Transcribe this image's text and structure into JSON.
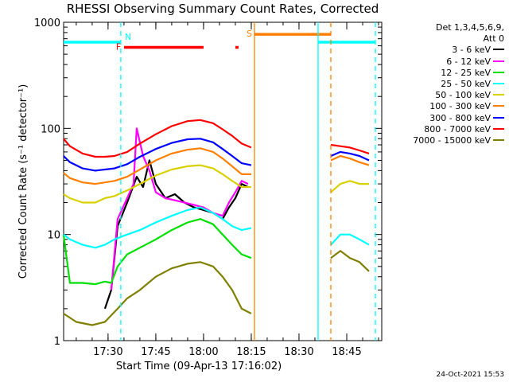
{
  "chart_data": {
    "type": "line",
    "title": "RHESSI Observing Summary Count Rates, Corrected",
    "xlabel": "Start Time (09-Apr-13 17:16:02)",
    "ylabel": "Corrected Count Rate (s⁻¹ detector⁻¹)",
    "yscale": "log",
    "ylim": [
      1,
      1000
    ],
    "xlim": [
      "17:16:02",
      "18:56:00"
    ],
    "x_ticks": [
      "17:30",
      "17:45",
      "18:00",
      "18:15",
      "18:30",
      "18:45"
    ],
    "y_ticks": [
      "1",
      "10",
      "100",
      "1000"
    ],
    "legend": {
      "header_line1": "Det 1,3,4,5,6,9,",
      "header_line2": "Att 0",
      "position": "right"
    },
    "series": [
      {
        "name": "3 - 6 keV",
        "color": "#000000",
        "points": [
          [
            "17:29",
            2
          ],
          [
            "17:31",
            3
          ],
          [
            "17:33",
            12
          ],
          [
            "17:36",
            20
          ],
          [
            "17:39",
            35
          ],
          [
            "17:41",
            28
          ],
          [
            "17:43",
            50
          ],
          [
            "17:45",
            30
          ],
          [
            "17:48",
            22
          ],
          [
            "17:51",
            24
          ],
          [
            "17:54",
            20
          ],
          [
            "17:57",
            18
          ],
          [
            "18:00",
            17
          ],
          [
            "18:03",
            16
          ],
          [
            "18:06",
            14
          ],
          [
            "18:08",
            18
          ],
          [
            "18:10",
            22
          ],
          [
            "18:12",
            30
          ],
          [
            "18:14",
            28
          ]
        ]
      },
      {
        "name": "6 - 12 keV",
        "color": "#ff00ff",
        "points": [
          [
            "17:31",
            3
          ],
          [
            "17:33",
            14
          ],
          [
            "17:36",
            22
          ],
          [
            "17:38",
            30
          ],
          [
            "17:39",
            100
          ],
          [
            "17:41",
            55
          ],
          [
            "17:43",
            40
          ],
          [
            "17:45",
            25
          ],
          [
            "17:48",
            22
          ],
          [
            "17:51",
            21
          ],
          [
            "17:54",
            20
          ],
          [
            "17:57",
            19
          ],
          [
            "18:00",
            18
          ],
          [
            "18:03",
            16
          ],
          [
            "18:06",
            15
          ],
          [
            "18:08",
            20
          ],
          [
            "18:10",
            25
          ],
          [
            "18:12",
            32
          ],
          [
            "18:14",
            30
          ]
        ]
      },
      {
        "name": "12 - 25 keV",
        "color": "#00e000",
        "points": [
          [
            "17:16",
            10
          ],
          [
            "17:18",
            3.5
          ],
          [
            "17:22",
            3.5
          ],
          [
            "17:26",
            3.4
          ],
          [
            "17:29",
            3.6
          ],
          [
            "17:31",
            3.5
          ],
          [
            "17:33",
            5
          ],
          [
            "17:36",
            6.5
          ],
          [
            "17:40",
            7.5
          ],
          [
            "17:45",
            9
          ],
          [
            "17:50",
            11
          ],
          [
            "17:55",
            13
          ],
          [
            "17:59",
            14
          ],
          [
            "18:03",
            12.5
          ],
          [
            "18:06",
            10
          ],
          [
            "18:09",
            8
          ],
          [
            "18:12",
            6.5
          ],
          [
            "18:15",
            6
          ]
        ]
      },
      {
        "name": "25 - 50 keV",
        "color": "#00ffff",
        "points": [
          [
            "17:16",
            10
          ],
          [
            "17:18",
            9
          ],
          [
            "17:22",
            8
          ],
          [
            "17:26",
            7.5
          ],
          [
            "17:29",
            8
          ],
          [
            "17:32",
            9
          ],
          [
            "17:36",
            10
          ],
          [
            "17:40",
            11
          ],
          [
            "17:45",
            13
          ],
          [
            "17:50",
            15
          ],
          [
            "17:55",
            17
          ],
          [
            "17:59",
            18
          ],
          [
            "18:03",
            16
          ],
          [
            "18:06",
            14
          ],
          [
            "18:09",
            12
          ],
          [
            "18:12",
            11
          ],
          [
            "18:15",
            11.5
          ],
          [
            "18:40",
            8
          ],
          [
            "18:43",
            10
          ],
          [
            "18:46",
            10
          ],
          [
            "18:49",
            9
          ],
          [
            "18:52",
            8
          ]
        ]
      },
      {
        "name": "50 - 100 keV",
        "color": "#d8d000",
        "points": [
          [
            "17:16",
            24
          ],
          [
            "17:18",
            22
          ],
          [
            "17:22",
            20
          ],
          [
            "17:26",
            20
          ],
          [
            "17:29",
            22
          ],
          [
            "17:32",
            23
          ],
          [
            "17:36",
            26
          ],
          [
            "17:40",
            30
          ],
          [
            "17:45",
            36
          ],
          [
            "17:50",
            41
          ],
          [
            "17:55",
            44
          ],
          [
            "17:59",
            45
          ],
          [
            "18:03",
            42
          ],
          [
            "18:06",
            37
          ],
          [
            "18:09",
            32
          ],
          [
            "18:12",
            28
          ],
          [
            "18:15",
            28
          ],
          [
            "18:40",
            25
          ],
          [
            "18:43",
            30
          ],
          [
            "18:46",
            32
          ],
          [
            "18:49",
            30
          ],
          [
            "18:52",
            30
          ]
        ]
      },
      {
        "name": "100 - 300 keV",
        "color": "#ff8000",
        "points": [
          [
            "17:16",
            38
          ],
          [
            "17:18",
            34
          ],
          [
            "17:22",
            31
          ],
          [
            "17:26",
            30
          ],
          [
            "17:29",
            31
          ],
          [
            "17:32",
            32
          ],
          [
            "17:36",
            35
          ],
          [
            "17:40",
            41
          ],
          [
            "17:45",
            50
          ],
          [
            "17:50",
            58
          ],
          [
            "17:55",
            63
          ],
          [
            "17:59",
            65
          ],
          [
            "18:03",
            60
          ],
          [
            "18:06",
            52
          ],
          [
            "18:09",
            44
          ],
          [
            "18:12",
            37
          ],
          [
            "18:15",
            37
          ],
          [
            "18:40",
            50
          ],
          [
            "18:43",
            55
          ],
          [
            "18:46",
            52
          ],
          [
            "18:49",
            48
          ],
          [
            "18:52",
            45
          ]
        ]
      },
      {
        "name": "300 - 800 keV",
        "color": "#0000ff",
        "points": [
          [
            "17:16",
            55
          ],
          [
            "17:18",
            48
          ],
          [
            "17:22",
            42
          ],
          [
            "17:26",
            40
          ],
          [
            "17:29",
            41
          ],
          [
            "17:32",
            42
          ],
          [
            "17:36",
            46
          ],
          [
            "17:40",
            54
          ],
          [
            "17:45",
            64
          ],
          [
            "17:50",
            73
          ],
          [
            "17:55",
            79
          ],
          [
            "17:59",
            80
          ],
          [
            "18:03",
            74
          ],
          [
            "18:06",
            64
          ],
          [
            "18:09",
            55
          ],
          [
            "18:12",
            47
          ],
          [
            "18:15",
            45
          ],
          [
            "18:40",
            55
          ],
          [
            "18:43",
            60
          ],
          [
            "18:46",
            58
          ],
          [
            "18:49",
            55
          ],
          [
            "18:52",
            50
          ]
        ]
      },
      {
        "name": "800 - 7000 keV",
        "color": "#ff0000",
        "points": [
          [
            "17:16",
            80
          ],
          [
            "17:18",
            68
          ],
          [
            "17:22",
            58
          ],
          [
            "17:26",
            54
          ],
          [
            "17:29",
            54
          ],
          [
            "17:32",
            55
          ],
          [
            "17:36",
            60
          ],
          [
            "17:40",
            72
          ],
          [
            "17:45",
            88
          ],
          [
            "17:50",
            105
          ],
          [
            "17:55",
            117
          ],
          [
            "17:59",
            120
          ],
          [
            "18:03",
            112
          ],
          [
            "18:06",
            98
          ],
          [
            "18:09",
            85
          ],
          [
            "18:12",
            72
          ],
          [
            "18:15",
            66
          ],
          [
            "18:40",
            70
          ],
          [
            "18:43",
            68
          ],
          [
            "18:46",
            66
          ],
          [
            "18:49",
            62
          ],
          [
            "18:52",
            58
          ]
        ]
      },
      {
        "name": "7000 - 15000 keV",
        "color": "#808000",
        "points": [
          [
            "17:16",
            1.8
          ],
          [
            "17:20",
            1.5
          ],
          [
            "17:25",
            1.4
          ],
          [
            "17:29",
            1.5
          ],
          [
            "17:33",
            2
          ],
          [
            "17:36",
            2.5
          ],
          [
            "17:40",
            3
          ],
          [
            "17:45",
            4
          ],
          [
            "17:50",
            4.8
          ],
          [
            "17:55",
            5.3
          ],
          [
            "17:59",
            5.5
          ],
          [
            "18:03",
            5
          ],
          [
            "18:06",
            4
          ],
          [
            "18:09",
            3
          ],
          [
            "18:12",
            2
          ],
          [
            "18:15",
            1.8
          ],
          [
            "18:40",
            6
          ],
          [
            "18:43",
            7
          ],
          [
            "18:46",
            6
          ],
          [
            "18:49",
            5.5
          ],
          [
            "18:52",
            4.5
          ]
        ]
      }
    ],
    "annotations": [
      {
        "type": "attenuator_bar",
        "color": "#00ffff",
        "y": 650,
        "from": "17:16:02",
        "to": "17:34"
      },
      {
        "type": "attenuator_bar",
        "color": "#00ffff",
        "y": 650,
        "from": "18:36",
        "to": "18:54"
      },
      {
        "type": "flag_bar",
        "label": "F",
        "color": "#ff0000",
        "y": 580,
        "from": "17:35",
        "to": "18:00"
      },
      {
        "type": "flag_bar",
        "label": "",
        "color": "#ff0000",
        "y": 580,
        "from": "18:10",
        "to": "18:11"
      },
      {
        "type": "flag_bar",
        "label": "S",
        "color": "#ff8000",
        "y": 770,
        "from": "18:16",
        "to": "18:40"
      },
      {
        "type": "vline",
        "label": "N",
        "color": "#00ffff",
        "x": "17:34",
        "style": "dashed"
      },
      {
        "type": "vline",
        "color": "#ff8000",
        "x": "18:16",
        "style": "solid"
      },
      {
        "type": "vline",
        "color": "#00ffff",
        "x": "18:36",
        "style": "solid"
      },
      {
        "type": "vline",
        "color": "#ff8000",
        "x": "18:40",
        "style": "dashed"
      },
      {
        "type": "vline",
        "color": "#00ffff",
        "x": "18:54",
        "style": "dashed"
      }
    ],
    "gaps": [
      [
        "18:16",
        "18:39"
      ]
    ]
  },
  "footer_stamp": "24-Oct-2021 15:53"
}
